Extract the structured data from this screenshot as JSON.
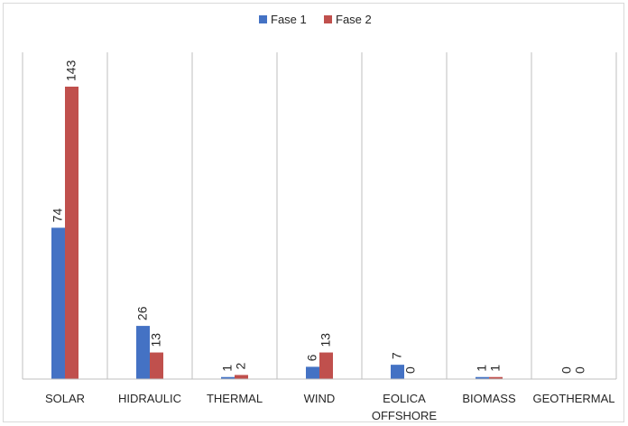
{
  "chart_data": {
    "type": "bar",
    "categories": [
      "SOLAR",
      "HIDRAULIC",
      "THERMAL",
      "WIND",
      "EOLICA\nOFFSHORE",
      "BIOMASS",
      "GEOTHERMAL"
    ],
    "series": [
      {
        "name": "Fase 1",
        "values": [
          74,
          26,
          1,
          6,
          7,
          1,
          0
        ],
        "color": "#4472C4"
      },
      {
        "name": "Fase 2",
        "values": [
          143,
          13,
          2,
          13,
          0,
          1,
          0
        ],
        "color": "#C0504D"
      }
    ],
    "ylim": [
      0,
      143
    ],
    "legend_position": "top-center",
    "grid": false,
    "category_separators": true
  }
}
